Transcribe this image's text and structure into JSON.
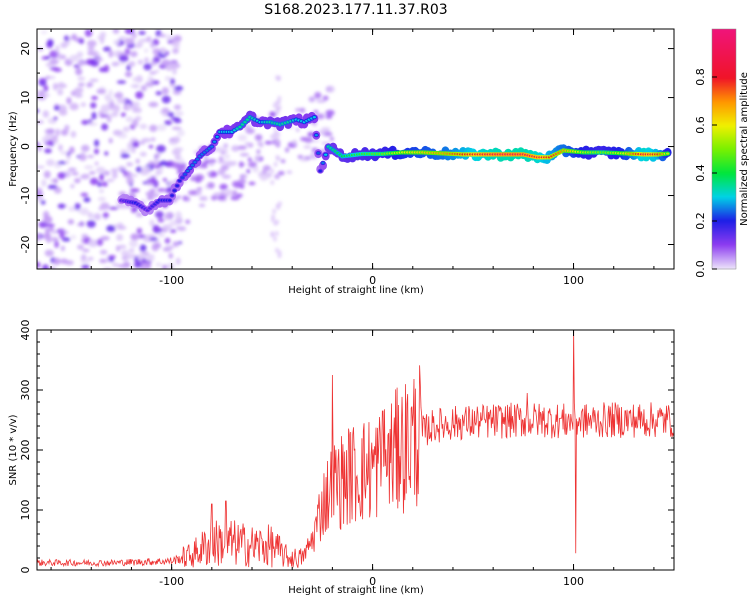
{
  "title": "S168.2023.177.11.37.R03",
  "chart_data": [
    {
      "type": "heatmap",
      "xlabel": "Height of straight line (km)",
      "ylabel": "Frequency (Hz)",
      "xlim": [
        -167,
        150
      ],
      "ylim": [
        -25,
        24
      ],
      "x_ticks": [
        -100,
        0,
        100
      ],
      "y_ticks": [
        -20,
        -10,
        0,
        10,
        20
      ],
      "colorbar": {
        "label": "Normalized spectral amplitude",
        "range": [
          0,
          1
        ],
        "ticks": [
          0.0,
          0.2,
          0.4,
          0.6,
          0.8
        ]
      },
      "ridge": [
        {
          "x": -125,
          "y": -11,
          "amp": 0.15
        },
        {
          "x": -118,
          "y": -11.5,
          "amp": 0.2
        },
        {
          "x": -112,
          "y": -13,
          "amp": 0.15
        },
        {
          "x": -106,
          "y": -11,
          "amp": 0.2
        },
        {
          "x": -101,
          "y": -11,
          "amp": 0.2
        },
        {
          "x": -96,
          "y": -7,
          "amp": 0.2
        },
        {
          "x": -92,
          "y": -5,
          "amp": 0.25
        },
        {
          "x": -86,
          "y": -2,
          "amp": 0.25
        },
        {
          "x": -80,
          "y": 0,
          "amp": 0.25
        },
        {
          "x": -76,
          "y": 3,
          "amp": 0.3
        },
        {
          "x": -70,
          "y": 3,
          "amp": 0.3
        },
        {
          "x": -66,
          "y": 4,
          "amp": 0.35
        },
        {
          "x": -61,
          "y": 6,
          "amp": 0.35
        },
        {
          "x": -56,
          "y": 5,
          "amp": 0.3
        },
        {
          "x": -51,
          "y": 5,
          "amp": 0.35
        },
        {
          "x": -46,
          "y": 4.5,
          "amp": 0.35
        },
        {
          "x": -42,
          "y": 5,
          "amp": 0.35
        },
        {
          "x": -38,
          "y": 5.5,
          "amp": 0.3
        },
        {
          "x": -34,
          "y": 5,
          "amp": 0.3
        },
        {
          "x": -29,
          "y": 6,
          "amp": 0.3
        },
        {
          "x": -26,
          "y": -5,
          "amp": 0.2
        },
        {
          "x": -22,
          "y": 0,
          "amp": 0.35
        },
        {
          "x": -15,
          "y": -2,
          "amp": 0.4
        },
        {
          "x": -5,
          "y": -1.5,
          "amp": 0.45
        },
        {
          "x": 5,
          "y": -1.5,
          "amp": 0.5
        },
        {
          "x": 15,
          "y": -1.2,
          "amp": 0.6
        },
        {
          "x": 25,
          "y": -1.2,
          "amp": 0.65
        },
        {
          "x": 35,
          "y": -1.4,
          "amp": 0.7
        },
        {
          "x": 45,
          "y": -1.6,
          "amp": 0.8
        },
        {
          "x": 55,
          "y": -1.6,
          "amp": 0.9
        },
        {
          "x": 65,
          "y": -1.6,
          "amp": 0.95
        },
        {
          "x": 75,
          "y": -1.6,
          "amp": 0.95
        },
        {
          "x": 82,
          "y": -2.2,
          "amp": 0.9
        },
        {
          "x": 88,
          "y": -2.2,
          "amp": 0.8
        },
        {
          "x": 95,
          "y": -0.8,
          "amp": 0.7
        },
        {
          "x": 105,
          "y": -1.2,
          "amp": 0.55
        },
        {
          "x": 115,
          "y": -1.2,
          "amp": 0.5
        },
        {
          "x": 125,
          "y": -1.4,
          "amp": 0.6
        },
        {
          "x": 135,
          "y": -1.6,
          "amp": 0.9
        },
        {
          "x": 142,
          "y": -1.6,
          "amp": 0.8
        },
        {
          "x": 148,
          "y": -1.4,
          "amp": 0.5
        }
      ]
    },
    {
      "type": "line",
      "xlabel": "Height of straight line (km)",
      "ylabel": "SNR (10 * v/v)",
      "xlim": [
        -167,
        150
      ],
      "ylim": [
        0,
        400
      ],
      "x_ticks": [
        -100,
        0,
        100
      ],
      "y_ticks": [
        0,
        100,
        200,
        300,
        400
      ],
      "color": "#ee3333",
      "envelope": [
        {
          "x": -167,
          "y": 12
        },
        {
          "x": -130,
          "y": 12
        },
        {
          "x": -100,
          "y": 15
        },
        {
          "x": -90,
          "y": 25
        },
        {
          "x": -80,
          "y": 45
        },
        {
          "x": -70,
          "y": 45
        },
        {
          "x": -60,
          "y": 40
        },
        {
          "x": -50,
          "y": 40
        },
        {
          "x": -42,
          "y": 20
        },
        {
          "x": -35,
          "y": 20
        },
        {
          "x": -30,
          "y": 50
        },
        {
          "x": -25,
          "y": 110
        },
        {
          "x": -20,
          "y": 140
        },
        {
          "x": -10,
          "y": 160
        },
        {
          "x": 0,
          "y": 170
        },
        {
          "x": 10,
          "y": 190
        },
        {
          "x": 20,
          "y": 220
        },
        {
          "x": 30,
          "y": 240
        },
        {
          "x": 40,
          "y": 245
        },
        {
          "x": 60,
          "y": 248
        },
        {
          "x": 80,
          "y": 250
        },
        {
          "x": 100,
          "y": 248
        },
        {
          "x": 120,
          "y": 250
        },
        {
          "x": 150,
          "y": 250
        }
      ],
      "spikes": [
        {
          "x": -80,
          "y": 110
        },
        {
          "x": -73,
          "y": 115
        },
        {
          "x": -20,
          "y": 325
        },
        {
          "x": -11,
          "y": 230
        },
        {
          "x": 5,
          "y": 265
        },
        {
          "x": 13,
          "y": 275
        },
        {
          "x": 77,
          "y": 295
        },
        {
          "x": 100,
          "y": 400
        },
        {
          "x": 101,
          "y": 28
        }
      ]
    }
  ]
}
